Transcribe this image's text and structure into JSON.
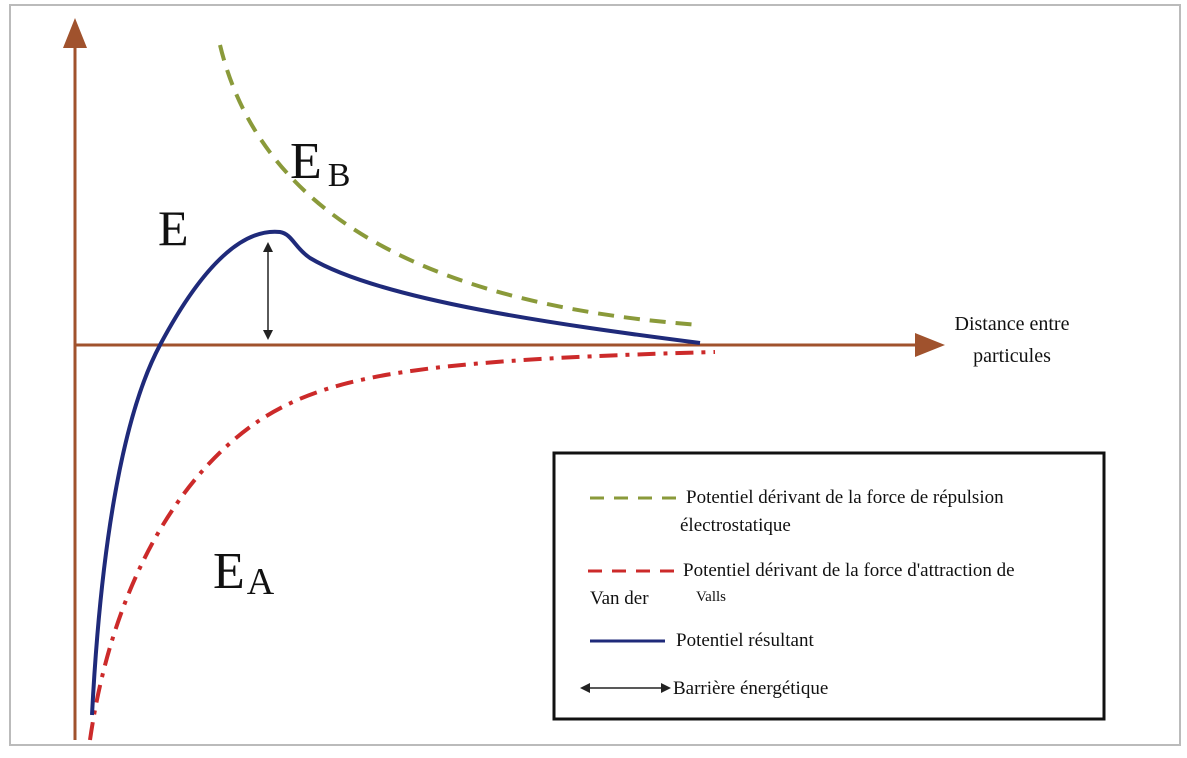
{
  "axis": {
    "x_label": [
      "Distance entre",
      "particules"
    ]
  },
  "curves": [
    {
      "label": "E"
    },
    {
      "label": "E",
      "subscript": "B"
    },
    {
      "label": "E",
      "subscript": "A"
    }
  ],
  "legend": {
    "items": [
      {
        "text": [
          "Potentiel dérivant de la force de répulsion",
          "électrostatique"
        ]
      },
      {
        "text": [
          "Potentiel dérivant de la force d'attraction de",
          "Van der",
          "Valls"
        ]
      },
      {
        "text": [
          "Potentiel résultant"
        ]
      },
      {
        "text": [
          "Barrière énergétique"
        ]
      }
    ]
  }
}
